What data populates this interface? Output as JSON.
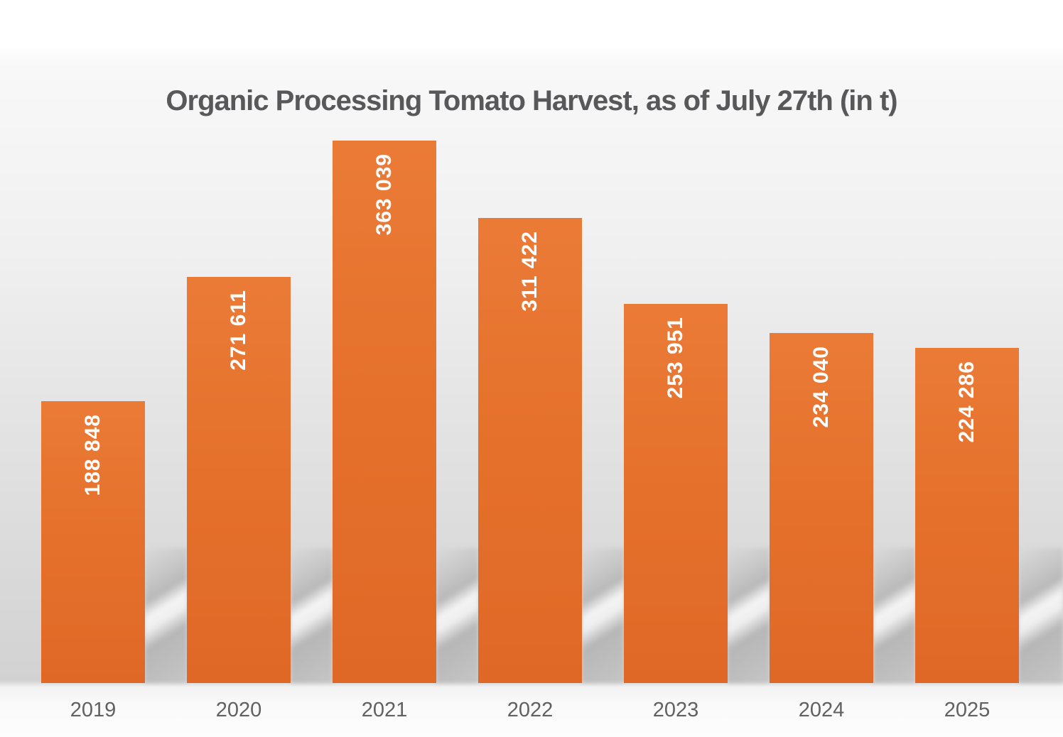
{
  "chart_data": {
    "type": "bar",
    "title": "Organic Processing Tomato Harvest, as of July 27th (in t)",
    "unit": "t",
    "categories": [
      "2019",
      "2020",
      "2021",
      "2022",
      "2023",
      "2024",
      "2025"
    ],
    "values": [
      188848,
      271611,
      363039,
      311422,
      253951,
      234040,
      224286
    ],
    "value_labels": [
      "188 848",
      "271 611",
      "363 039",
      "311 422",
      "253 951",
      "234 040",
      "224 286"
    ],
    "ylim": [
      0,
      363039
    ],
    "grid": false,
    "legend": false,
    "value_label_rotation": -90,
    "colors": {
      "bar_orange": "#e8732e",
      "bar_gradient_top": "#ea7b37",
      "bar_gradient_bottom": "#e06827",
      "value_label": "#ffffff",
      "axis_label": "#616161",
      "title": "#58585a",
      "background_top": "#ffffff",
      "background_wall": "#d2d2d2",
      "background_floor": "#fbfbfb"
    }
  }
}
